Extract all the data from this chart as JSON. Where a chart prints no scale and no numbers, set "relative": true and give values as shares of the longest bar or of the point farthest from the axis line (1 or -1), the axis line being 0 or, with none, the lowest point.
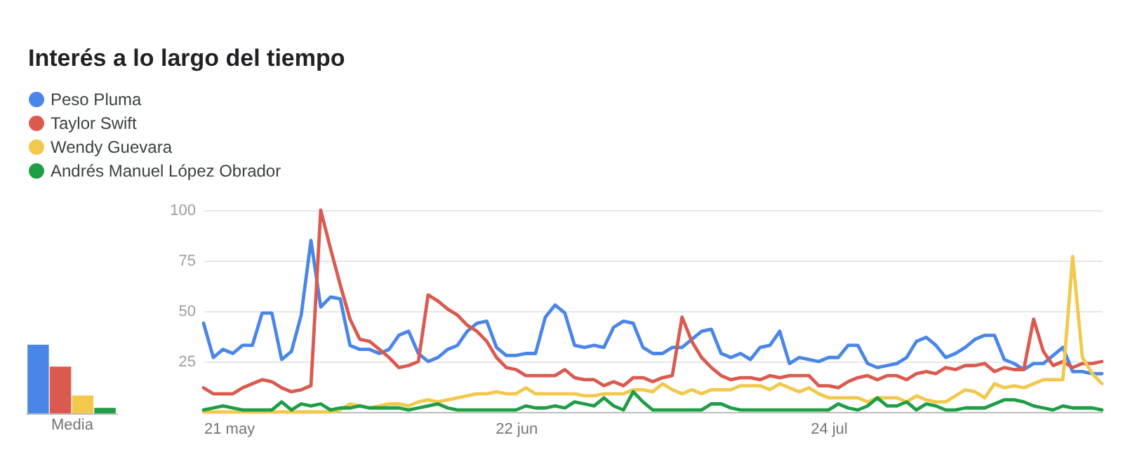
{
  "chart_data": [
    {
      "type": "line",
      "title": "Interés a lo largo del tiempo",
      "legend": "top left",
      "grid": "y",
      "marker": "none",
      "line_style": "solid",
      "x": [
        "--05-21",
        "--05-22",
        "--05-23",
        "--05-24",
        "--05-25",
        "--05-26",
        "--05-27",
        "--05-28",
        "--05-29",
        "--05-30",
        "--05-31",
        "--06-01",
        "--06-02",
        "--06-03",
        "--06-04",
        "--06-05",
        "--06-06",
        "--06-07",
        "--06-08",
        "--06-09",
        "--06-10",
        "--06-11",
        "--06-12",
        "--06-13",
        "--06-14",
        "--06-15",
        "--06-16",
        "--06-17",
        "--06-18",
        "--06-19",
        "--06-20",
        "--06-21",
        "--06-22",
        "--06-23",
        "--06-24",
        "--06-25",
        "--06-26",
        "--06-27",
        "--06-28",
        "--06-29",
        "--06-30",
        "--07-01",
        "--07-02",
        "--07-03",
        "--07-04",
        "--07-05",
        "--07-06",
        "--07-07",
        "--07-08",
        "--07-09",
        "--07-10",
        "--07-11",
        "--07-12",
        "--07-13",
        "--07-14",
        "--07-15",
        "--07-16",
        "--07-17",
        "--07-18",
        "--07-19",
        "--07-20",
        "--07-21",
        "--07-22",
        "--07-23",
        "--07-24",
        "--07-25",
        "--07-26",
        "--07-27",
        "--07-28",
        "--07-29",
        "--07-30",
        "--07-31",
        "--08-01",
        "--08-02",
        "--08-03",
        "--08-04",
        "--08-05",
        "--08-06",
        "--08-07",
        "--08-08",
        "--08-09",
        "--08-10",
        "--08-11",
        "--08-12",
        "--08-13",
        "--08-14",
        "--08-15",
        "--08-16",
        "--08-17",
        "--08-18",
        "--08-19",
        "--08-20",
        "--08-21"
      ],
      "xlim": [
        "--05-21",
        "--08-21"
      ],
      "xticks": [
        {
          "value": "--05-21",
          "label": "21 may"
        },
        {
          "value": "--06-22",
          "label": "22 jun"
        },
        {
          "value": "--07-24",
          "label": "24 jul"
        }
      ],
      "ylim": [
        0,
        100
      ],
      "yticks": [
        25,
        50,
        75,
        100
      ],
      "series": [
        {
          "name": "Peso Pluma",
          "color": "#4a86e8",
          "values": [
            44,
            27,
            31,
            29,
            33,
            33,
            49,
            49,
            26,
            30,
            48,
            85,
            52,
            57,
            56,
            33,
            31,
            31,
            29,
            31,
            38,
            40,
            29,
            25,
            27,
            31,
            33,
            40,
            44,
            45,
            32,
            28,
            28,
            29,
            29,
            47,
            53,
            49,
            33,
            32,
            33,
            32,
            42,
            45,
            44,
            32,
            29,
            29,
            32,
            32,
            36,
            40,
            41,
            29,
            27,
            29,
            26,
            32,
            33,
            40,
            24,
            27,
            26,
            25,
            27,
            27,
            33,
            33,
            24,
            22,
            23,
            24,
            27,
            35,
            37,
            33,
            27,
            29,
            32,
            36,
            38,
            38,
            26,
            24,
            21,
            24,
            24,
            28,
            32,
            20,
            20,
            19,
            19
          ]
        },
        {
          "name": "Taylor Swift",
          "color": "#db5a4f",
          "values": [
            12,
            9,
            9,
            9,
            12,
            14,
            16,
            15,
            12,
            10,
            11,
            13,
            100,
            81,
            63,
            46,
            36,
            35,
            31,
            27,
            22,
            23,
            25,
            58,
            55,
            51,
            48,
            43,
            40,
            35,
            27,
            22,
            21,
            18,
            18,
            18,
            18,
            21,
            17,
            16,
            16,
            13,
            15,
            13,
            17,
            17,
            15,
            17,
            18,
            47,
            35,
            27,
            22,
            18,
            16,
            17,
            17,
            16,
            18,
            17,
            18,
            18,
            18,
            13,
            13,
            12,
            15,
            17,
            18,
            16,
            18,
            18,
            16,
            19,
            20,
            19,
            22,
            21,
            23,
            23,
            24,
            20,
            22,
            21,
            21,
            46,
            30,
            23,
            25,
            22,
            24,
            24,
            25
          ]
        },
        {
          "name": "Wendy Guevara",
          "color": "#f2c94c",
          "values": [
            0,
            0,
            0,
            0,
            0,
            0,
            0,
            0,
            0,
            0,
            0,
            0,
            0,
            0,
            1,
            4,
            3,
            2,
            3,
            4,
            4,
            3,
            5,
            6,
            5,
            6,
            7,
            8,
            9,
            9,
            10,
            9,
            9,
            12,
            9,
            9,
            9,
            9,
            9,
            8,
            8,
            9,
            9,
            9,
            11,
            11,
            10,
            14,
            11,
            9,
            11,
            9,
            11,
            11,
            11,
            13,
            13,
            13,
            11,
            14,
            12,
            10,
            12,
            9,
            7,
            7,
            7,
            7,
            5,
            7,
            7,
            7,
            5,
            8,
            6,
            5,
            5,
            8,
            11,
            10,
            7,
            14,
            12,
            13,
            12,
            14,
            16,
            16,
            16,
            77,
            27,
            19,
            14
          ]
        },
        {
          "name": "Andrés Manuel López Obrador",
          "color": "#1e9e45",
          "values": [
            1,
            2,
            3,
            2,
            1,
            1,
            1,
            1,
            5,
            1,
            4,
            3,
            4,
            1,
            2,
            2,
            3,
            2,
            2,
            2,
            2,
            1,
            2,
            3,
            4,
            2,
            1,
            1,
            1,
            1,
            1,
            1,
            1,
            3,
            2,
            2,
            3,
            2,
            5,
            4,
            3,
            7,
            3,
            1,
            10,
            5,
            1,
            1,
            1,
            1,
            1,
            1,
            4,
            4,
            2,
            1,
            1,
            1,
            1,
            1,
            1,
            1,
            1,
            1,
            1,
            4,
            2,
            1,
            3,
            7,
            3,
            3,
            5,
            1,
            4,
            3,
            1,
            1,
            2,
            2,
            2,
            4,
            6,
            6,
            5,
            3,
            2,
            1,
            3,
            2,
            2,
            2,
            1
          ]
        }
      ]
    },
    {
      "type": "bar",
      "relative": true,
      "xlabel": "Media",
      "categories": [
        null,
        null,
        null,
        null
      ],
      "values": [
        1,
        0.68,
        0.26,
        0.08
      ],
      "colors": [
        "#4a86e8",
        "#db5a4f",
        "#f2c94c",
        "#1e9e45"
      ]
    }
  ]
}
